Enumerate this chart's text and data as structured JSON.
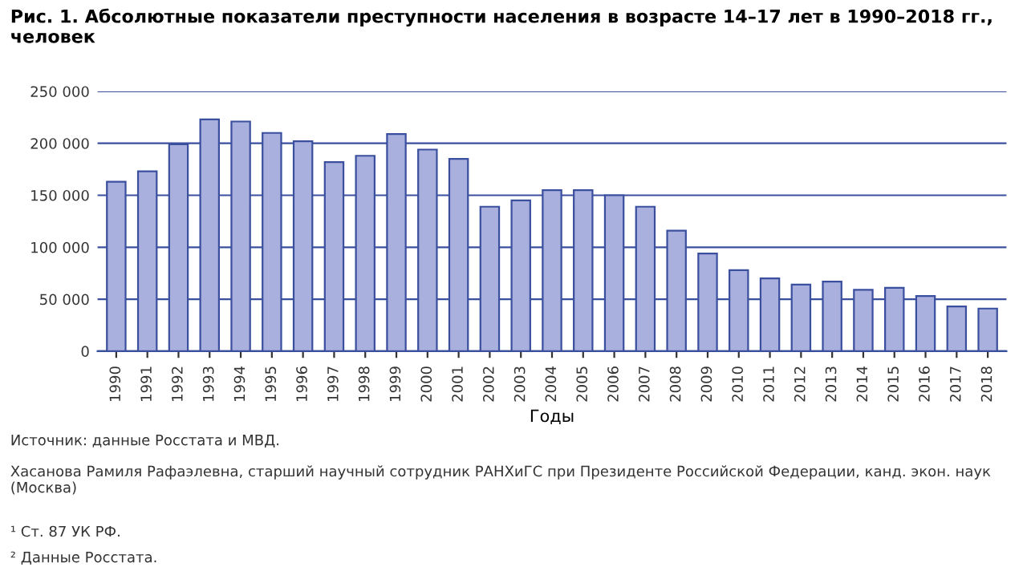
{
  "chart_data": {
    "type": "bar",
    "title": "Рис. 1. Абсолютные показатели преступности населения в возрасте 14–17 лет в 1990–2018 гг., человек",
    "xlabel": "Годы",
    "categories": [
      "1990",
      "1991",
      "1992",
      "1993",
      "1994",
      "1995",
      "1996",
      "1997",
      "1998",
      "1999",
      "2000",
      "2001",
      "2002",
      "2003",
      "2004",
      "2005",
      "2006",
      "2007",
      "2008",
      "2009",
      "2010",
      "2011",
      "2012",
      "2013",
      "2014",
      "2015",
      "2016",
      "2017",
      "2018"
    ],
    "values": [
      163000,
      173000,
      199000,
      223000,
      221000,
      210000,
      202000,
      182000,
      188000,
      209000,
      194000,
      185000,
      139000,
      145000,
      155000,
      155000,
      150000,
      139000,
      116000,
      94000,
      78000,
      70000,
      64000,
      67000,
      59000,
      61000,
      53000,
      43000,
      41000
    ],
    "color": "#aab0de",
    "ylim": [
      0,
      250000
    ],
    "yticks": [
      {
        "value": 0,
        "label": "0"
      },
      {
        "value": 50000,
        "label": "50 000"
      },
      {
        "value": 100000,
        "label": "100 000"
      },
      {
        "value": 150000,
        "label": "150 000"
      },
      {
        "value": 200000,
        "label": "200 000"
      },
      {
        "value": 250000,
        "label": "250 000"
      }
    ],
    "grid": "y",
    "annotations": [
      "Источник: данные Росстата и МВД.",
      "Хасанова Рамиля Рафаэлевна, старший научный сотрудник РАНХиГС при Президенте Российской Федерации, канд. экон. наук (Москва)",
      "¹ Ст. 87 УК РФ.",
      "² Данные Росстата."
    ]
  }
}
